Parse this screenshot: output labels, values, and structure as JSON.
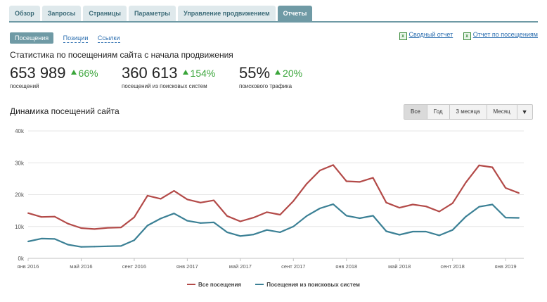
{
  "tabs": [
    {
      "label": "Обзор",
      "active": false
    },
    {
      "label": "Запросы",
      "active": false
    },
    {
      "label": "Страницы",
      "active": false
    },
    {
      "label": "Параметры",
      "active": false
    },
    {
      "label": "Управление продвижением",
      "active": false
    },
    {
      "label": "Отчеты",
      "active": true
    }
  ],
  "subnav": {
    "active": "Посещения",
    "links": [
      "Позиции",
      "Ссылки"
    ]
  },
  "reports": {
    "summary": "Сводный отчет",
    "visits": "Отчет по посещениям",
    "icon": "excel-icon"
  },
  "stats": {
    "title": "Статистика по посещениям сайта с начала продвижения",
    "items": [
      {
        "value": "653 989",
        "change": "66%",
        "caption": "посещений"
      },
      {
        "value": "360 613",
        "change": "154%",
        "caption": "посещений из поисковых систем"
      },
      {
        "value": "55%",
        "change": "20%",
        "caption": "поискового трафика"
      }
    ]
  },
  "chart_title": "Динамика посещений сайта",
  "range_buttons": [
    "Все",
    "Год",
    "3 месяца",
    "Месяц"
  ],
  "range_active": "Все",
  "range_dropdown": "▼",
  "chart_data": {
    "type": "line",
    "ylim": [
      0,
      40000
    ],
    "yticks": [
      {
        "v": 0,
        "label": "0k"
      },
      {
        "v": 10000,
        "label": "10k"
      },
      {
        "v": 20000,
        "label": "20k"
      },
      {
        "v": 30000,
        "label": "30k"
      },
      {
        "v": 40000,
        "label": "40k"
      }
    ],
    "x_labels": [
      {
        "i": 0,
        "label": "янв 2016"
      },
      {
        "i": 4,
        "label": "май 2016"
      },
      {
        "i": 8,
        "label": "сент 2016"
      },
      {
        "i": 12,
        "label": "янв 2017"
      },
      {
        "i": 16,
        "label": "май 2017"
      },
      {
        "i": 20,
        "label": "сент 2017"
      },
      {
        "i": 24,
        "label": "янв 2018"
      },
      {
        "i": 28,
        "label": "май 2018"
      },
      {
        "i": 32,
        "label": "сент 2018"
      },
      {
        "i": 36,
        "label": "янв 2019"
      }
    ],
    "grid": true,
    "legend_position": "bottom",
    "series": [
      {
        "name": "Все посещения",
        "color": "#b34a48",
        "values": [
          14200,
          13000,
          13100,
          10900,
          9500,
          9200,
          9600,
          9700,
          12900,
          19700,
          18700,
          21200,
          18500,
          17500,
          18200,
          13300,
          11600,
          12800,
          14500,
          13700,
          18000,
          23400,
          27600,
          29300,
          24200,
          24000,
          25300,
          17500,
          15900,
          16900,
          16300,
          14700,
          17300,
          23800,
          29200,
          28600,
          22100,
          20500
        ]
      },
      {
        "name": "Посещения из поисковых систем",
        "color": "#3b8095",
        "values": [
          5300,
          6200,
          6100,
          4300,
          3600,
          3700,
          3800,
          3900,
          5700,
          10300,
          12500,
          14100,
          11800,
          11100,
          11300,
          8200,
          7000,
          7500,
          8900,
          8200,
          10000,
          13300,
          15700,
          17000,
          13400,
          12600,
          13400,
          8500,
          7400,
          8400,
          8400,
          7200,
          8900,
          13100,
          16200,
          16900,
          12800,
          12700
        ]
      }
    ]
  }
}
